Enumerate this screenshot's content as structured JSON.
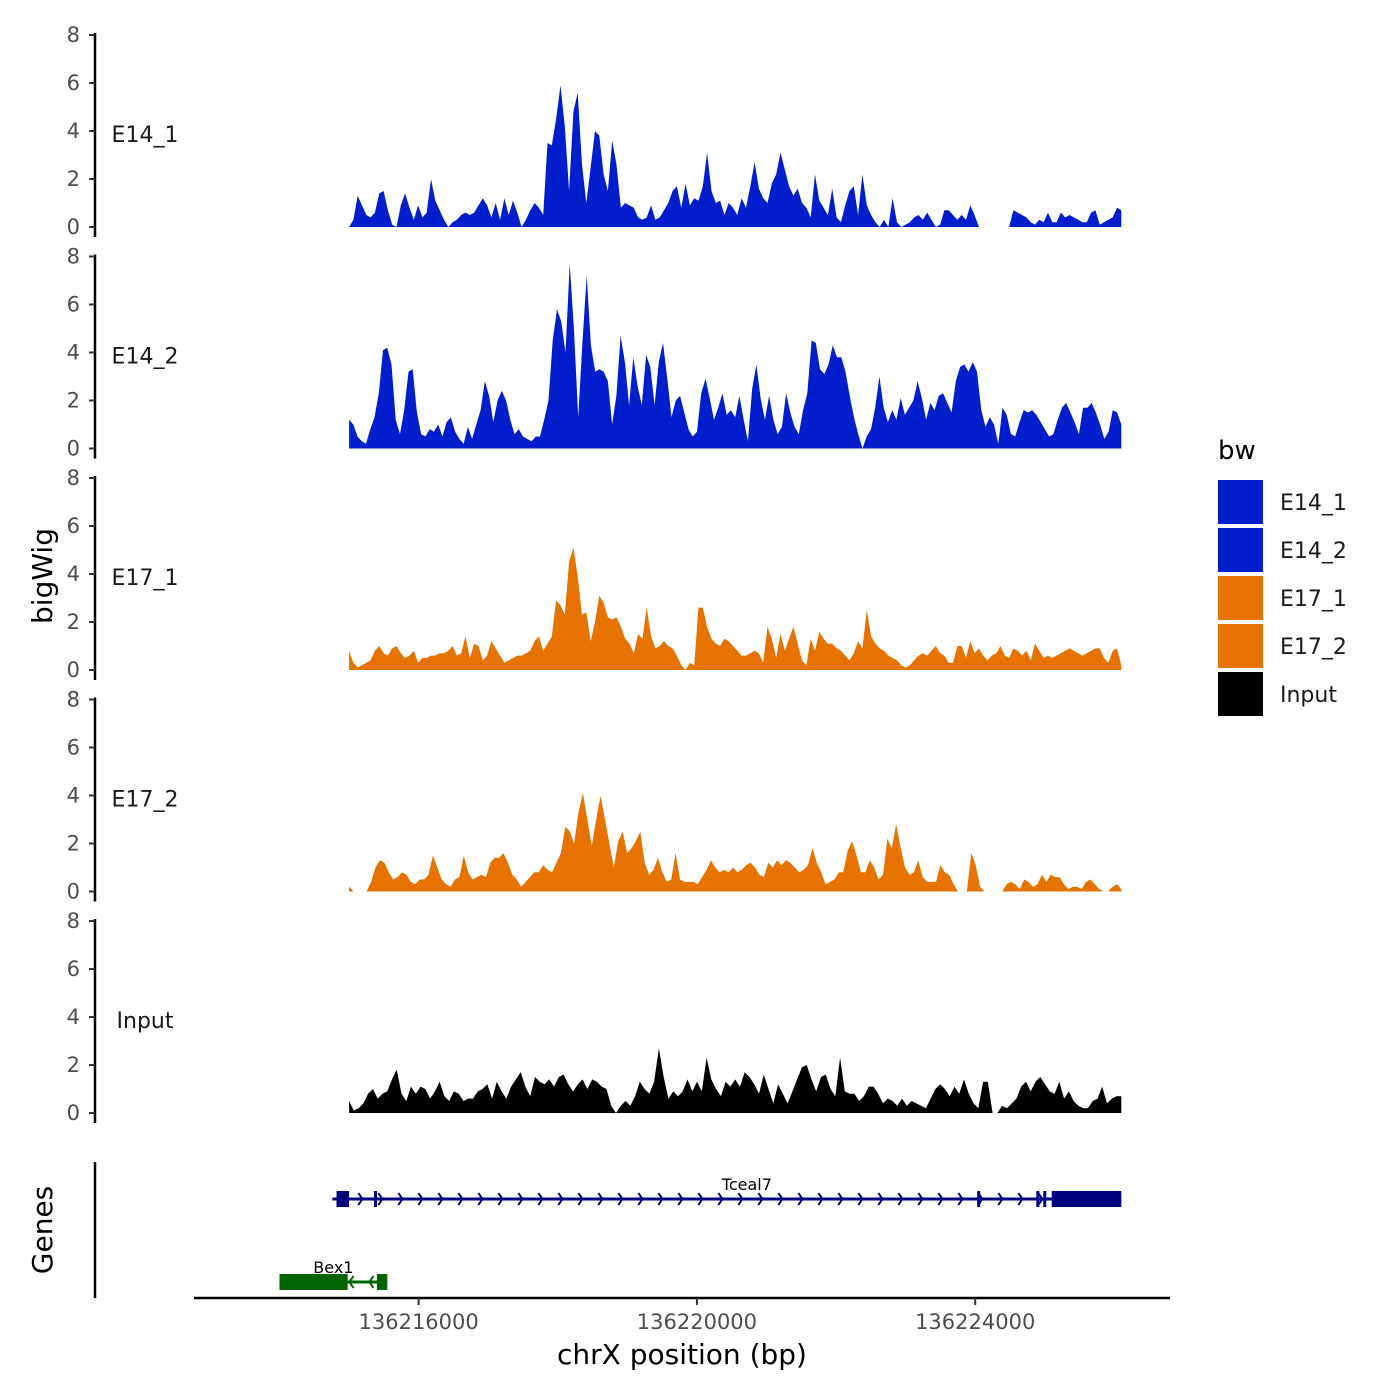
{
  "chart_data": {
    "type": "area",
    "xlabel": "chrX position (bp)",
    "ylabel": "bigWig",
    "genes_label": "Genes",
    "xlim": [
      136212800,
      136226800
    ],
    "x_ticks": [
      {
        "value": 136216000,
        "label": "136216000"
      },
      {
        "value": 136220000,
        "label": "136220000"
      },
      {
        "value": 136224000,
        "label": "136224000"
      }
    ],
    "ylim": [
      0,
      8
    ],
    "y_ticks": [
      "0",
      "2",
      "4",
      "6",
      "8"
    ],
    "track_start": 136215000,
    "track_end": 136226100,
    "legend": {
      "title": "bw",
      "items": [
        {
          "label": "E14_1",
          "color": "#001ECC"
        },
        {
          "label": "E14_2",
          "color": "#001ECC"
        },
        {
          "label": "E17_1",
          "color": "#E67300"
        },
        {
          "label": "E17_2",
          "color": "#E67300"
        },
        {
          "label": "Input",
          "color": "#000000"
        }
      ]
    },
    "series": [
      {
        "name": "E14_1",
        "color": "#001ECC",
        "values": [
          0,
          0.3,
          1.3,
          0.9,
          0.5,
          0.4,
          0.6,
          1.4,
          1.5,
          0.7,
          0.1,
          0,
          0.9,
          1.4,
          0.8,
          0.3,
          0.9,
          0.4,
          0.6,
          2,
          1.1,
          0.7,
          0.3,
          0,
          0.2,
          0.3,
          0.5,
          0.6,
          0.5,
          0.6,
          0.9,
          1.2,
          0.9,
          0.4,
          1,
          0.3,
          1.2,
          0.5,
          1.1,
          0.6,
          0,
          0.3,
          0.7,
          1,
          0.8,
          0.5,
          3.5,
          3.4,
          4.5,
          5.9,
          4.2,
          1.5,
          4.8,
          5.6,
          2.6,
          1,
          2.5,
          4,
          3.8,
          2.2,
          1.5,
          3.6,
          2.6,
          0.8,
          1,
          0.9,
          0.8,
          0.4,
          0.3,
          0.4,
          0.9,
          0.3,
          0.4,
          0.7,
          1,
          1.5,
          1.7,
          0.8,
          1.8,
          0.9,
          1.2,
          1.1,
          1.7,
          3.1,
          1.5,
          1,
          1.1,
          0.5,
          1,
          0.8,
          0.5,
          1.2,
          0.8,
          1.7,
          2.7,
          1.6,
          1.2,
          1,
          1.8,
          2.2,
          3.1,
          2.4,
          1.7,
          1.3,
          1.6,
          1,
          0.8,
          0.4,
          2.2,
          1.1,
          0.8,
          0.5,
          1.6,
          0.4,
          0.2,
          0.9,
          1.5,
          1.7,
          0.5,
          2.2,
          0.9,
          0.5,
          0.2,
          0,
          0.3,
          0,
          1.2,
          0.2,
          0,
          0.1,
          0.2,
          0.4,
          0.5,
          0.3,
          0.6,
          0.3,
          0,
          0.1,
          0.7,
          0.7,
          0.5,
          0.3,
          0.5,
          0.3,
          0.9,
          0.5,
          0,
          0,
          0,
          0,
          0,
          0,
          0,
          0,
          0.7,
          0.6,
          0.5,
          0.4,
          0.2,
          0.1,
          0.3,
          0.2,
          0.6,
          0.2,
          0.2,
          0.6,
          0.4,
          0.5,
          0.4,
          0.3,
          0.2,
          0.2,
          0.6,
          0.7,
          0.1,
          0.2,
          0.3,
          0.4,
          0.8,
          0.7
        ]
      },
      {
        "name": "E14_2",
        "color": "#001ECC",
        "values": [
          1.2,
          1,
          0.5,
          0.3,
          0.2,
          0.8,
          1.3,
          2.3,
          4.1,
          4.2,
          3.5,
          1.2,
          0.6,
          1.6,
          3.2,
          3.3,
          1.5,
          0.6,
          0.5,
          0.8,
          0.7,
          1,
          0.5,
          1.1,
          1.3,
          0.7,
          0.4,
          0.2,
          0.9,
          0.4,
          1,
          1.6,
          2.8,
          2.2,
          1.1,
          2,
          2.4,
          2,
          1.2,
          0.6,
          0.8,
          0.5,
          0.4,
          0.3,
          0.5,
          0.5,
          1.2,
          2,
          4.5,
          5.8,
          5.3,
          4,
          7.7,
          5,
          1.3,
          4.4,
          7.2,
          4.3,
          3.2,
          3.3,
          3.2,
          2.8,
          1,
          2.2,
          4.7,
          3.6,
          1.8,
          3.8,
          2.6,
          1.8,
          3.9,
          3.4,
          1.8,
          3.6,
          4.4,
          2.9,
          1.3,
          2,
          2.2,
          1.5,
          0.8,
          0.5,
          0.7,
          2.3,
          2.9,
          2.1,
          1.2,
          1.7,
          2.3,
          1.4,
          1.6,
          1.3,
          2.2,
          1.2,
          0.3,
          2.5,
          3.5,
          2.1,
          1.2,
          2.2,
          1.2,
          0.6,
          0.9,
          2.3,
          1.5,
          0.9,
          0.6,
          1.6,
          2.3,
          4.5,
          4.4,
          3.3,
          3.1,
          3.5,
          4.3,
          3.8,
          3.8,
          3.2,
          2.2,
          1.3,
          0.6,
          0,
          0.5,
          0.8,
          1.7,
          3,
          1.7,
          1.1,
          1.6,
          1.2,
          2.1,
          1.4,
          1.7,
          2,
          2.8,
          2.1,
          1.2,
          1.9,
          1.6,
          2.2,
          2.3,
          1.9,
          1.5,
          2.8,
          3.4,
          3.5,
          3.2,
          3.6,
          3.2,
          1.6,
          0.9,
          1.3,
          1,
          0.2,
          1.7,
          1.4,
          0.6,
          0.5,
          1.1,
          1.6,
          1.5,
          1.6,
          1.4,
          1.1,
          0.8,
          0.5,
          0.6,
          1.2,
          1.7,
          1.9,
          1.5,
          1.1,
          0.6,
          1.7,
          1.7,
          1.9,
          1.5,
          1,
          0.4,
          0.7,
          1.6,
          1.5,
          1
        ]
      },
      {
        "name": "E17_1",
        "color": "#E67300",
        "values": [
          0.8,
          0.3,
          0.1,
          0.2,
          0.3,
          0.4,
          0.8,
          1,
          0.7,
          0.6,
          0.9,
          1,
          0.7,
          0.5,
          0.6,
          0.8,
          0.3,
          0.5,
          0.5,
          0.6,
          0.6,
          0.7,
          0.7,
          0.8,
          1,
          0.6,
          0.7,
          1.4,
          0.5,
          1.1,
          1,
          0.4,
          0.6,
          1.2,
          0.9,
          0.6,
          0.3,
          0.4,
          0.5,
          0.6,
          0.6,
          0.7,
          0.8,
          1.2,
          1.4,
          0.8,
          1.1,
          1.4,
          2.9,
          2.7,
          2.3,
          4.5,
          5.1,
          3.9,
          2.3,
          2.4,
          1.2,
          2,
          3.1,
          2.8,
          2.2,
          2.1,
          2.2,
          1.8,
          1.3,
          1.1,
          0.7,
          1.5,
          1.3,
          2.6,
          1.4,
          0.9,
          1,
          1.2,
          1,
          0.9,
          0.6,
          0.2,
          0,
          0.3,
          0.2,
          2.6,
          2.6,
          1.8,
          1.3,
          1.1,
          1,
          1.3,
          1.2,
          1,
          0.8,
          0.6,
          0.6,
          0.7,
          0.8,
          0.7,
          0.3,
          1.8,
          1.3,
          0.5,
          1.5,
          0.8,
          1.3,
          1.8,
          1.1,
          0.4,
          0.2,
          1.3,
          0.8,
          1.6,
          1.3,
          1.1,
          1.1,
          0.9,
          0.8,
          0.6,
          0.4,
          0.7,
          1.2,
          0.9,
          2.5,
          1.4,
          1.1,
          0.9,
          0.8,
          0.6,
          0.5,
          0.4,
          0.2,
          0.1,
          0.2,
          0.4,
          0.6,
          0.7,
          0.6,
          0.8,
          1,
          0.7,
          0.6,
          0.3,
          0.3,
          1,
          1,
          0.5,
          1.2,
          0.7,
          0.9,
          0.6,
          0.4,
          0.6,
          0.7,
          1,
          0.6,
          0.5,
          0.9,
          0.8,
          0.6,
          0.8,
          0.4,
          1.1,
          0.8,
          0.5,
          0.6,
          0.5,
          0.6,
          0.7,
          0.8,
          0.9,
          0.8,
          0.7,
          0.6,
          0.7,
          0.8,
          0.9,
          0.9,
          0.5,
          0.3,
          0.8,
          0.9,
          0.2
        ]
      },
      {
        "name": "E17_2",
        "color": "#E67300",
        "values": [
          0.2,
          0,
          0,
          0,
          0,
          0.4,
          1,
          1.3,
          1.2,
          0.8,
          0.5,
          0.6,
          0.8,
          0.7,
          0.4,
          0.3,
          0.5,
          0.5,
          0.7,
          1.5,
          1,
          0.5,
          0.3,
          0.2,
          0.5,
          0.6,
          1.5,
          0.8,
          0.5,
          0.6,
          0.7,
          0.6,
          1.2,
          1.4,
          1.4,
          1.6,
          1.2,
          0.7,
          0.5,
          0.2,
          0.4,
          0.6,
          0.8,
          0.8,
          1.1,
          0.9,
          0.8,
          1.2,
          1.6,
          2.7,
          2.5,
          2,
          3.3,
          4.1,
          3,
          1.9,
          3,
          4,
          3,
          2,
          1,
          2.1,
          2.5,
          1.6,
          1.8,
          2.1,
          2.5,
          1.2,
          0.7,
          0.9,
          1.4,
          0.8,
          0.4,
          0.5,
          1.6,
          0.5,
          0.4,
          0.4,
          0.4,
          0.3,
          0.6,
          0.9,
          1.3,
          1,
          0.8,
          0.9,
          0.8,
          1,
          0.8,
          0.9,
          1.1,
          1.2,
          1,
          0.7,
          0.6,
          1.2,
          1,
          1.3,
          1.1,
          1.3,
          1.2,
          1,
          0.8,
          0.9,
          1.1,
          1.8,
          1.2,
          0.8,
          0.3,
          0.4,
          0.5,
          0.8,
          0.8,
          1.7,
          2.1,
          1.5,
          0.8,
          0.8,
          1.3,
          1,
          0.5,
          0.7,
          2.2,
          1.8,
          2.8,
          1.8,
          1,
          0.7,
          0.8,
          1.3,
          0.6,
          0.4,
          0.4,
          0.4,
          1.1,
          0.8,
          0.7,
          0.3,
          0,
          0,
          0,
          1.6,
          1.1,
          0.2,
          0,
          0,
          0,
          0,
          0,
          0.3,
          0.4,
          0.3,
          0.1,
          0.5,
          0.4,
          0.2,
          0.3,
          0.7,
          0.4,
          0.7,
          0.6,
          0.6,
          0.3,
          0.1,
          0.2,
          0.2,
          0.1,
          0.4,
          0.5,
          0.3,
          0.1,
          0,
          0,
          0.2,
          0.3,
          0.1
        ]
      },
      {
        "name": "Input",
        "color": "#000000",
        "values": [
          0.5,
          0.1,
          0.2,
          0.4,
          0.8,
          1,
          0.6,
          0.8,
          0.9,
          1.4,
          1.8,
          0.8,
          0.5,
          1.1,
          0.8,
          1.1,
          1,
          0.6,
          0.9,
          1.3,
          0.7,
          0.5,
          0.9,
          0.8,
          0.5,
          0.6,
          0.6,
          0.9,
          1,
          1.2,
          0.6,
          1.3,
          0.9,
          0.6,
          1.1,
          1.4,
          1.7,
          1.1,
          0.7,
          1.5,
          1.3,
          1.2,
          1.4,
          1.1,
          1.5,
          1.6,
          1.2,
          0.9,
          1.2,
          1.4,
          1,
          1.4,
          1.3,
          1.1,
          1,
          0.3,
          0,
          0.3,
          0.5,
          0.3,
          0.7,
          1.3,
          1,
          0.8,
          1.3,
          2.7,
          1.5,
          0.6,
          0.9,
          0.7,
          0.9,
          1.4,
          0.9,
          1.3,
          0.9,
          2.3,
          1.4,
          1,
          0.7,
          1.3,
          1.1,
          1.4,
          1.1,
          1.7,
          1.5,
          1.2,
          0.8,
          1.6,
          1,
          0.4,
          1.2,
          0.8,
          0.4,
          0.9,
          1.4,
          1.9,
          2,
          1.4,
          0.9,
          1.5,
          1.6,
          1,
          0.7,
          2.3,
          0.9,
          0.8,
          0.8,
          0.5,
          0.7,
          1.1,
          1.1,
          0.8,
          0.4,
          0.6,
          0.5,
          0.3,
          0.6,
          0.3,
          0.5,
          0.4,
          0.3,
          0.2,
          0.6,
          1,
          1.2,
          1,
          0.7,
          1.1,
          0.8,
          1.4,
          0.8,
          0.4,
          0.2,
          1.3,
          1.3,
          0,
          0,
          0.3,
          0.2,
          0.4,
          0.6,
          1.1,
          1.3,
          0.9,
          1.3,
          1.5,
          1.2,
          0.9,
          0.8,
          1.3,
          0.6,
          0.9,
          0.5,
          0.3,
          0.2,
          0.2,
          0.5,
          0.6,
          1.1,
          0.4,
          0.6,
          0.7,
          0.7
        ]
      }
    ],
    "genes": [
      {
        "name": "Tceal7",
        "color": "#00007F",
        "start": 136214760,
        "end": 136226100,
        "strand": "+",
        "exons": [
          [
            136214820,
            136215000
          ],
          [
            136225100,
            136226100
          ]
        ],
        "small_exons": [
          136215380,
          136224050,
          136224900,
          136225000
        ]
      },
      {
        "name": "Bex1",
        "color": "#006400",
        "start": 136214000,
        "end": 136215550,
        "strand": "-",
        "exons": [
          [
            136214000,
            136214980
          ],
          [
            136215400,
            136215550
          ]
        ],
        "small_exons": []
      }
    ]
  }
}
